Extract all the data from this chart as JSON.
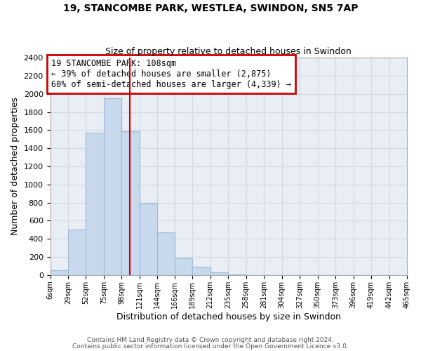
{
  "title": "19, STANCOMBE PARK, WESTLEA, SWINDON, SN5 7AP",
  "subtitle": "Size of property relative to detached houses in Swindon",
  "xlabel": "Distribution of detached houses by size in Swindon",
  "ylabel": "Number of detached properties",
  "bin_edges": [
    6,
    29,
    52,
    75,
    98,
    121,
    144,
    166,
    189,
    212,
    235,
    258,
    281,
    304,
    327,
    350,
    373,
    396,
    419,
    442,
    465
  ],
  "bin_heights": [
    50,
    500,
    1575,
    1950,
    1590,
    800,
    475,
    185,
    90,
    30,
    5,
    0,
    0,
    0,
    0,
    0,
    0,
    0,
    0,
    0
  ],
  "bar_color": "#c8d8ed",
  "bar_edgecolor": "#a0b8d0",
  "grid_color": "#d0d8e0",
  "property_line_x": 108,
  "property_line_color": "#cc0000",
  "annotation_box_text": "19 STANCOMBE PARK: 108sqm\n← 39% of detached houses are smaller (2,875)\n60% of semi-detached houses are larger (4,339) →",
  "annotation_box_color": "#cc0000",
  "annotation_fontsize": 8.5,
  "footnote1": "Contains HM Land Registry data © Crown copyright and database right 2024.",
  "footnote2": "Contains public sector information licensed under the Open Government Licence v3.0.",
  "ylim": [
    0,
    2400
  ],
  "yticks": [
    0,
    200,
    400,
    600,
    800,
    1000,
    1200,
    1400,
    1600,
    1800,
    2000,
    2200,
    2400
  ],
  "xtick_labels": [
    "6sqm",
    "29sqm",
    "52sqm",
    "75sqm",
    "98sqm",
    "121sqm",
    "144sqm",
    "166sqm",
    "189sqm",
    "212sqm",
    "235sqm",
    "258sqm",
    "281sqm",
    "304sqm",
    "327sqm",
    "350sqm",
    "373sqm",
    "396sqm",
    "419sqm",
    "442sqm",
    "465sqm"
  ],
  "background_color": "#ffffff",
  "plot_bg_color": "#e8eef4"
}
